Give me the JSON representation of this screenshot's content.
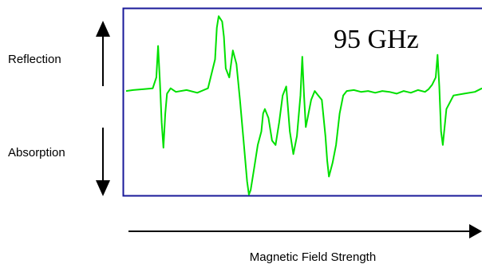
{
  "chart_data": {
    "type": "line",
    "annotation": "95 GHz",
    "xlabel": "Magnetic Field Strength",
    "y_up_label": "Reflection",
    "y_down_label": "Absorption",
    "colors": {
      "trace": "#00e000",
      "frame": "#1a1a9a",
      "axis": "#000000"
    },
    "xlim": [
      0,
      1
    ],
    "ylim": [
      -1,
      1
    ],
    "series": [
      {
        "x": [
          0.0,
          0.02,
          0.05,
          0.075,
          0.085,
          0.09,
          0.095,
          0.1,
          0.105,
          0.11,
          0.115,
          0.125,
          0.14,
          0.17,
          0.2,
          0.23,
          0.25,
          0.255,
          0.26,
          0.27,
          0.275,
          0.28,
          0.29,
          0.3,
          0.31,
          0.32,
          0.33,
          0.34,
          0.345,
          0.35,
          0.36,
          0.37,
          0.38,
          0.385,
          0.39,
          0.4,
          0.41,
          0.42,
          0.43,
          0.44,
          0.45,
          0.46,
          0.47,
          0.48,
          0.49,
          0.495,
          0.5,
          0.505,
          0.51,
          0.52,
          0.53,
          0.54,
          0.55,
          0.56,
          0.565,
          0.57,
          0.58,
          0.59,
          0.6,
          0.61,
          0.62,
          0.64,
          0.66,
          0.68,
          0.7,
          0.72,
          0.74,
          0.76,
          0.78,
          0.8,
          0.82,
          0.84,
          0.85,
          0.86,
          0.87,
          0.875,
          0.88,
          0.885,
          0.89,
          0.9,
          0.92,
          0.95,
          0.98,
          1.0
        ],
        "y": [
          0.15,
          0.16,
          0.17,
          0.18,
          0.3,
          0.65,
          0.25,
          -0.2,
          -0.48,
          -0.1,
          0.12,
          0.18,
          0.14,
          0.16,
          0.13,
          0.18,
          0.5,
          0.85,
          0.98,
          0.92,
          0.75,
          0.4,
          0.3,
          0.6,
          0.45,
          0.05,
          -0.4,
          -0.85,
          -1.0,
          -0.95,
          -0.7,
          -0.45,
          -0.3,
          -0.1,
          -0.05,
          -0.15,
          -0.4,
          -0.45,
          -0.2,
          0.1,
          0.2,
          -0.3,
          -0.55,
          -0.35,
          0.1,
          0.53,
          0.1,
          -0.25,
          -0.15,
          0.05,
          0.15,
          0.1,
          0.05,
          -0.35,
          -0.62,
          -0.8,
          -0.65,
          -0.45,
          -0.1,
          0.1,
          0.15,
          0.16,
          0.14,
          0.15,
          0.13,
          0.15,
          0.14,
          0.12,
          0.15,
          0.13,
          0.16,
          0.14,
          0.17,
          0.22,
          0.3,
          0.55,
          0.2,
          -0.3,
          -0.45,
          -0.05,
          0.1,
          0.12,
          0.14,
          0.18
        ]
      }
    ]
  }
}
